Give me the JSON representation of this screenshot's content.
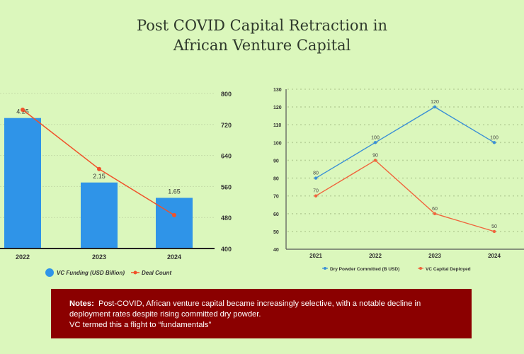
{
  "title_line1": "Post COVID Capital Retraction in",
  "title_line2": "African Venture Capital",
  "colors": {
    "bar": "#2f94e8",
    "deal": "#f0522a",
    "dry": "#3a8fd6",
    "vc": "#f0643c",
    "notes_bg": "#8b0000",
    "bg": "#dbf7bc"
  },
  "chart_data": [
    {
      "type": "bar",
      "categories": [
        "2022",
        "2023",
        "2024"
      ],
      "series": [
        {
          "name": "VC Funding (USD Billion)",
          "type": "bar",
          "values": [
            4.25,
            2.15,
            1.65
          ],
          "labels": [
            "4.25",
            "2.15",
            "1.65"
          ]
        },
        {
          "name": "Deal Count",
          "type": "line",
          "axis": "right",
          "values": [
            758,
            605,
            486
          ]
        }
      ],
      "bar_ylim": [
        0,
        5.05
      ],
      "right_ylim": [
        400,
        800
      ],
      "right_ticks": [
        "800",
        "720",
        "640",
        "560",
        "480",
        "400"
      ],
      "legend": [
        "VC Funding (USD Billion)",
        "Deal Count"
      ],
      "legend_position": "bottom",
      "grid": true
    },
    {
      "type": "line",
      "categories": [
        "2021",
        "2022",
        "2023",
        "2024"
      ],
      "series": [
        {
          "name": "Dry Powder Committed (B USD)",
          "values": [
            80,
            100,
            120,
            100
          ]
        },
        {
          "name": "VC Capital Deployed",
          "values": [
            70,
            90,
            60,
            50
          ]
        }
      ],
      "ylim": [
        40,
        130
      ],
      "y_ticks": [
        "130",
        "120",
        "110",
        "100",
        "90",
        "80",
        "70",
        "60",
        "50",
        "40"
      ],
      "legend": [
        "Dry Powder Committed (B USD)",
        "VC Capital Deployed"
      ],
      "legend_position": "bottom",
      "grid": true
    }
  ],
  "notes": {
    "label": "Notes:",
    "line1": "Post-COVID, African venture capital became increasingly selective, with a notable decline in deployment rates despite rising committed dry powder.",
    "line2": "VC termed this a flight to “fundamentals”"
  }
}
